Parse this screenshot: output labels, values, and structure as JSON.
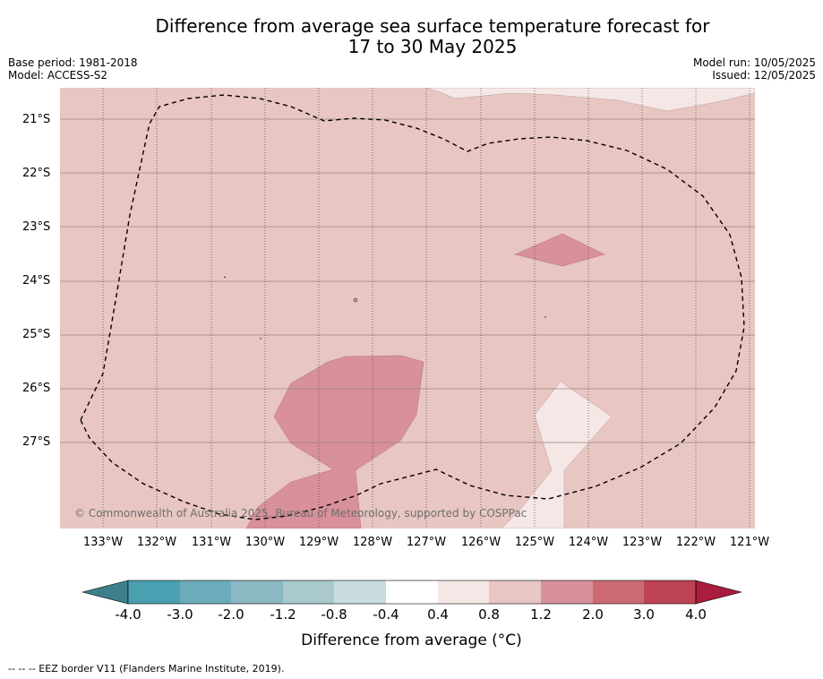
{
  "title_line1": "Difference from average sea surface temperature forecast for",
  "title_line2": "17 to 30 May 2025",
  "base_period": "Base period: 1981-2018",
  "model": "Model: ACCESS-S2",
  "model_run": "Model run: 10/05/2025",
  "issued": "Issued: 12/05/2025",
  "latitude_labels": [
    "21°S",
    "22°S",
    "23°S",
    "24°S",
    "25°S",
    "26°S",
    "27°S"
  ],
  "longitude_labels": [
    "133°W",
    "132°W",
    "131°W",
    "130°W",
    "129°W",
    "128°W",
    "127°W",
    "126°W",
    "125°W",
    "124°W",
    "123°W",
    "122°W",
    "121°W"
  ],
  "colorbar": {
    "label": "Difference from average (°C)",
    "ticks": [
      "-4.0",
      "-3.0",
      "-2.0",
      "-1.2",
      "-0.8",
      "-0.4",
      "0.4",
      "0.8",
      "1.2",
      "2.0",
      "3.0",
      "4.0"
    ],
    "colors": [
      "#4a9fb1",
      "#6cacba",
      "#8ab8c3",
      "#a9c9cf",
      "#c8dbdf",
      "#ffffff",
      "#f5e7e6",
      "#e8c6c2",
      "#d8909a",
      "#cc6a73",
      "#bd4354"
    ],
    "extend_low_color": "#3d7f8a",
    "extend_high_color": "#a81c3c"
  },
  "map": {
    "background_color": "#e8c6c2",
    "warm_patch_color": "#d8909a",
    "cool_patch_color": "#f5e7e6",
    "eez_border_style": "dashed"
  },
  "copyright": "© Commonwealth of Australia 2025, Bureau of Meteorology, supported by COSPPac",
  "footnote": "-- -- -- EEZ border V11 (Flanders Marine Institute, 2019)."
}
